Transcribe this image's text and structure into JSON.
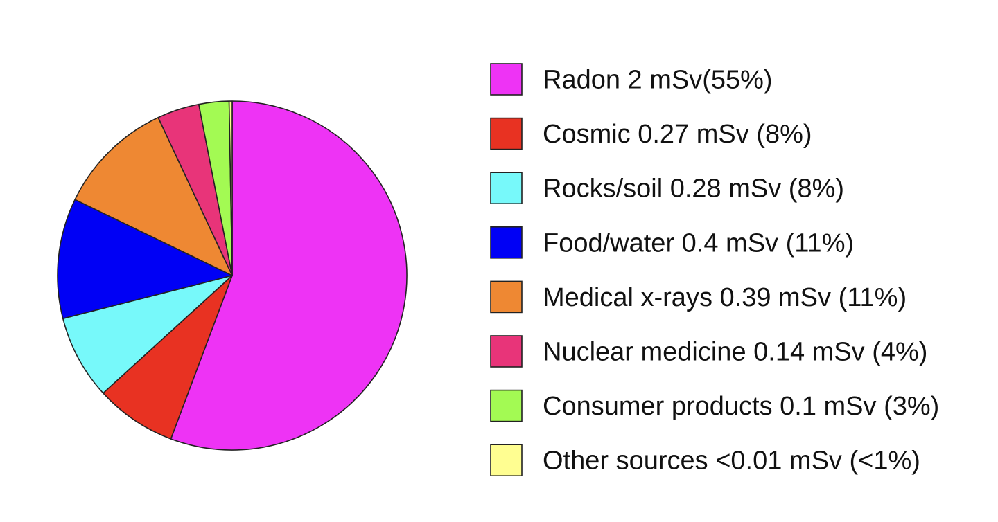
{
  "chart_data": {
    "type": "pie",
    "title": "",
    "legend_position": "right",
    "start_angle_deg": 0,
    "direction": "clockwise",
    "slices": [
      {
        "label": "Radon 2 mSv(55%)",
        "value": 2,
        "percent": 55,
        "color": "#EE33F5"
      },
      {
        "label": "Cosmic 0.27 mSv (8%)",
        "value": 0.27,
        "percent": 8,
        "color": "#E83222"
      },
      {
        "label": "Rocks/soil 0.28 mSv (8%)",
        "value": 0.28,
        "percent": 8,
        "color": "#77F9FA"
      },
      {
        "label": "Food/water 0.4 mSv (11%)",
        "value": 0.4,
        "percent": 11,
        "color": "#0000F5"
      },
      {
        "label": "Medical x-rays 0.39 mSv (11%)",
        "value": 0.39,
        "percent": 11,
        "color": "#EE8833"
      },
      {
        "label": "Nuclear medicine 0.14 mSv (4%)",
        "value": 0.14,
        "percent": 4,
        "color": "#E83479"
      },
      {
        "label": "Consumer products 0.1 mSv (3%)",
        "value": 0.1,
        "percent": 3,
        "color": "#A3FA53"
      },
      {
        "label": "Other sources <0.01 mSv (<1%)",
        "value": 0.01,
        "percent": 1,
        "color": "#FFFE91"
      }
    ]
  }
}
